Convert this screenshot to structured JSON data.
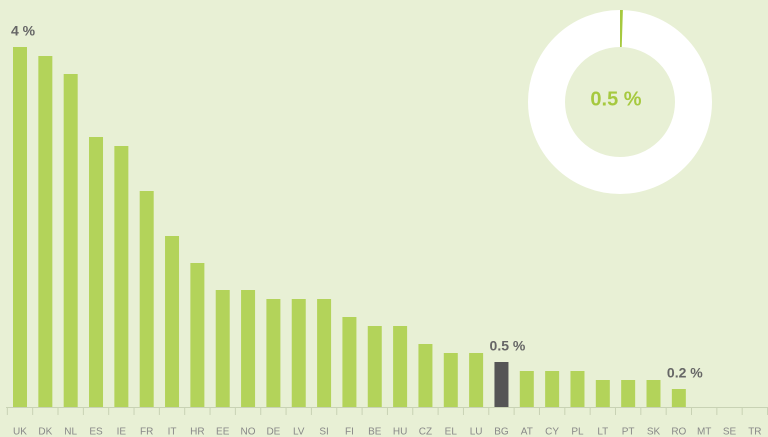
{
  "chart_data": [
    {
      "type": "bar",
      "categories": [
        "UK",
        "DK",
        "NL",
        "ES",
        "IE",
        "FR",
        "IT",
        "HR",
        "EE",
        "NO",
        "DE",
        "LV",
        "SI",
        "FI",
        "BE",
        "HU",
        "CZ",
        "EL",
        "LU",
        "BG",
        "AT",
        "CY",
        "PL",
        "LT",
        "PT",
        "SK",
        "RO",
        "MT",
        "SE",
        "TR"
      ],
      "values": [
        4.0,
        3.9,
        3.7,
        3.0,
        2.9,
        2.4,
        1.9,
        1.6,
        1.3,
        1.3,
        1.2,
        1.2,
        1.2,
        1.0,
        0.9,
        0.9,
        0.7,
        0.6,
        0.6,
        0.5,
        0.4,
        0.4,
        0.4,
        0.3,
        0.3,
        0.3,
        0.2,
        0,
        0,
        0
      ],
      "value_labels": [
        "4 %",
        null,
        null,
        null,
        null,
        null,
        null,
        null,
        null,
        null,
        null,
        null,
        null,
        null,
        null,
        null,
        null,
        null,
        null,
        "0.5 %",
        null,
        null,
        null,
        null,
        null,
        null,
        "0.2 %",
        null,
        null,
        null
      ],
      "color": "#b3d35a",
      "highlight": "BG",
      "highlight_color": "#555555"
    },
    {
      "type": "donut",
      "value": 0.5,
      "value_label": "0.5 %",
      "range": [
        0,
        100
      ],
      "color": "#a6c93f",
      "ring_color": "#ffffff"
    }
  ]
}
